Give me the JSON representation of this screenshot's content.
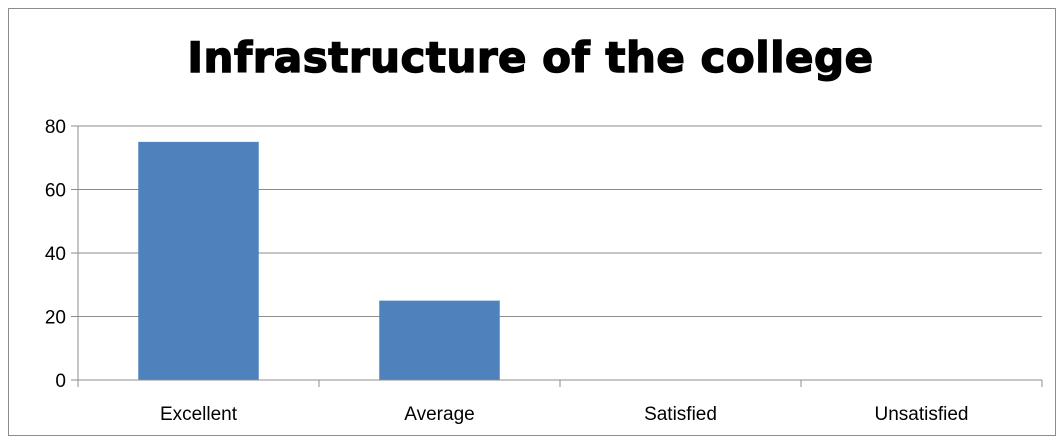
{
  "chart_data": {
    "type": "bar",
    "title": "Infrastructure of the college",
    "categories": [
      "Excellent",
      "Average",
      "Satisfied",
      "Unsatisfied"
    ],
    "values": [
      75,
      25,
      0,
      0
    ],
    "ylim": [
      0,
      80
    ],
    "yticks": [
      0,
      20,
      40,
      60,
      80
    ],
    "xlabel": "",
    "ylabel": "",
    "grid": true,
    "legend": "none",
    "bar_color": "#4f81bd",
    "gridline_color": "#8c8c8c"
  }
}
